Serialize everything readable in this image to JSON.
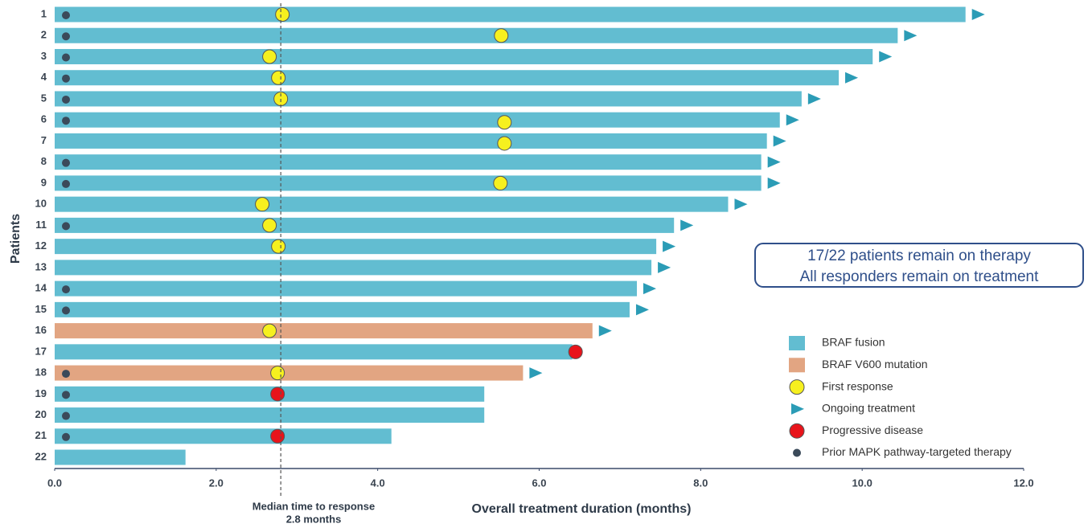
{
  "chart_data": {
    "type": "swimmer",
    "categories": [
      "1",
      "2",
      "3",
      "4",
      "5",
      "6",
      "7",
      "8",
      "9",
      "10",
      "11",
      "12",
      "13",
      "14",
      "15",
      "16",
      "17",
      "18",
      "19",
      "20",
      "21",
      "22"
    ],
    "series": [
      {
        "name": "BRAF fusion",
        "color": "#62bdd1",
        "values": [
          11.28,
          10.44,
          10.13,
          9.71,
          9.25,
          8.98,
          8.82,
          8.75,
          8.75,
          8.34,
          7.67,
          7.45,
          7.39,
          7.21,
          7.12,
          null,
          6.41,
          null,
          5.32,
          5.32,
          4.17,
          1.62
        ]
      },
      {
        "name": "BRAF V600 mutation",
        "color": "#e2a582",
        "values": [
          null,
          null,
          null,
          null,
          null,
          null,
          null,
          null,
          null,
          null,
          null,
          null,
          null,
          null,
          null,
          6.66,
          null,
          5.8,
          null,
          null,
          null,
          null
        ]
      }
    ],
    "markers": [
      {
        "name": "First response",
        "shape": "circle",
        "color": "#f6f01f",
        "values": [
          2.82,
          5.53,
          2.66,
          2.77,
          2.8,
          5.57,
          5.57,
          null,
          5.52,
          2.57,
          2.66,
          2.77,
          null,
          null,
          null,
          2.66,
          null,
          2.76,
          null,
          null,
          null,
          null
        ]
      },
      {
        "name": "Ongoing treatment",
        "shape": "arrow",
        "color": "#2b9cb6",
        "values": [
          true,
          true,
          true,
          true,
          true,
          true,
          true,
          true,
          true,
          true,
          true,
          true,
          true,
          true,
          true,
          true,
          false,
          true,
          false,
          false,
          false,
          false
        ]
      },
      {
        "name": "Progressive disease",
        "shape": "circle",
        "color": "#e8141b",
        "values": [
          null,
          null,
          null,
          null,
          null,
          null,
          null,
          null,
          null,
          null,
          null,
          null,
          null,
          null,
          null,
          null,
          6.45,
          null,
          2.76,
          null,
          2.76,
          null
        ]
      },
      {
        "name": "Prior MAPK pathway-targeted therapy",
        "shape": "dot",
        "color": "#3b4a5a",
        "values": [
          true,
          true,
          true,
          true,
          true,
          true,
          false,
          true,
          true,
          false,
          true,
          false,
          false,
          true,
          true,
          false,
          false,
          true,
          true,
          true,
          true,
          false
        ]
      }
    ],
    "xlim": [
      0,
      12
    ],
    "xticks": [
      {
        "value": 0,
        "label": "0.0"
      },
      {
        "value": 2,
        "label": "2.0"
      },
      {
        "value": 4,
        "label": "4.0"
      },
      {
        "value": 6,
        "label": "6.0"
      },
      {
        "value": 8,
        "label": "8.0"
      },
      {
        "value": 10,
        "label": "10.0"
      },
      {
        "value": 12,
        "label": "12.0"
      }
    ],
    "xlabel": "Overall treatment duration (months)",
    "ylabel": "Patients",
    "median_line": {
      "value": 2.8,
      "label": [
        "Median time to response",
        "2.8 months"
      ]
    },
    "callout": [
      "17/22 patients remain on therapy",
      "All responders remain on treatment"
    ]
  }
}
